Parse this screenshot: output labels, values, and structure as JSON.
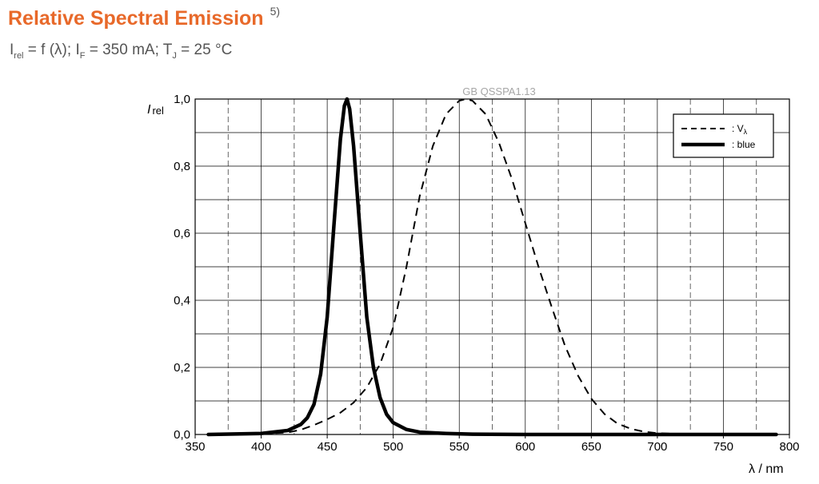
{
  "header": {
    "title": "Relative Spectral Emission",
    "footnote": "5)",
    "subtitle": {
      "i": "I",
      "i_sub": "rel",
      "func": " = f (λ); I",
      "if_sub": "F",
      "current": " = 350 mA; T",
      "tj_sub": "J",
      "temp": " = 25 °C"
    }
  },
  "chart_data": {
    "type": "line",
    "code_label": "GB QSSPA1.13",
    "ylabel_main": "I",
    "ylabel_sub": "rel",
    "xlabel": "λ / nm",
    "xlim": [
      350,
      800
    ],
    "ylim": [
      0,
      1
    ],
    "x_ticks": [
      "350",
      "400",
      "450",
      "500",
      "550",
      "600",
      "650",
      "700",
      "750",
      "800"
    ],
    "y_ticks": [
      "0,0",
      "0,2",
      "0,4",
      "0,6",
      "0,8",
      "1,0"
    ],
    "grid": true,
    "legend_position": "top-right",
    "series": [
      {
        "name": ": V",
        "name_sub": "λ",
        "style": "dashed",
        "color": "#000000",
        "points": [
          [
            380,
            0.0
          ],
          [
            400,
            0.002
          ],
          [
            420,
            0.006
          ],
          [
            430,
            0.014
          ],
          [
            440,
            0.028
          ],
          [
            450,
            0.045
          ],
          [
            460,
            0.065
          ],
          [
            470,
            0.095
          ],
          [
            480,
            0.14
          ],
          [
            490,
            0.21
          ],
          [
            500,
            0.32
          ],
          [
            510,
            0.5
          ],
          [
            520,
            0.71
          ],
          [
            530,
            0.86
          ],
          [
            540,
            0.955
          ],
          [
            550,
            0.995
          ],
          [
            555,
            1.0
          ],
          [
            560,
            0.995
          ],
          [
            570,
            0.955
          ],
          [
            580,
            0.87
          ],
          [
            590,
            0.76
          ],
          [
            600,
            0.63
          ],
          [
            610,
            0.5
          ],
          [
            620,
            0.38
          ],
          [
            630,
            0.265
          ],
          [
            640,
            0.175
          ],
          [
            650,
            0.107
          ],
          [
            660,
            0.061
          ],
          [
            670,
            0.032
          ],
          [
            680,
            0.017
          ],
          [
            690,
            0.008
          ],
          [
            700,
            0.004
          ],
          [
            720,
            0.001
          ],
          [
            740,
            0.0
          ]
        ]
      },
      {
        "name": ": blue",
        "name_sub": "",
        "style": "solid",
        "color": "#000000",
        "points": [
          [
            360,
            0.0
          ],
          [
            400,
            0.003
          ],
          [
            420,
            0.012
          ],
          [
            430,
            0.03
          ],
          [
            435,
            0.05
          ],
          [
            440,
            0.09
          ],
          [
            445,
            0.18
          ],
          [
            450,
            0.35
          ],
          [
            455,
            0.62
          ],
          [
            460,
            0.88
          ],
          [
            463,
            0.98
          ],
          [
            465,
            1.0
          ],
          [
            467,
            0.97
          ],
          [
            470,
            0.86
          ],
          [
            475,
            0.6
          ],
          [
            480,
            0.35
          ],
          [
            485,
            0.2
          ],
          [
            490,
            0.11
          ],
          [
            495,
            0.06
          ],
          [
            500,
            0.035
          ],
          [
            510,
            0.015
          ],
          [
            520,
            0.007
          ],
          [
            540,
            0.003
          ],
          [
            560,
            0.001
          ],
          [
            600,
            0.0
          ],
          [
            700,
            0.0
          ],
          [
            790,
            0.0
          ]
        ]
      }
    ]
  }
}
